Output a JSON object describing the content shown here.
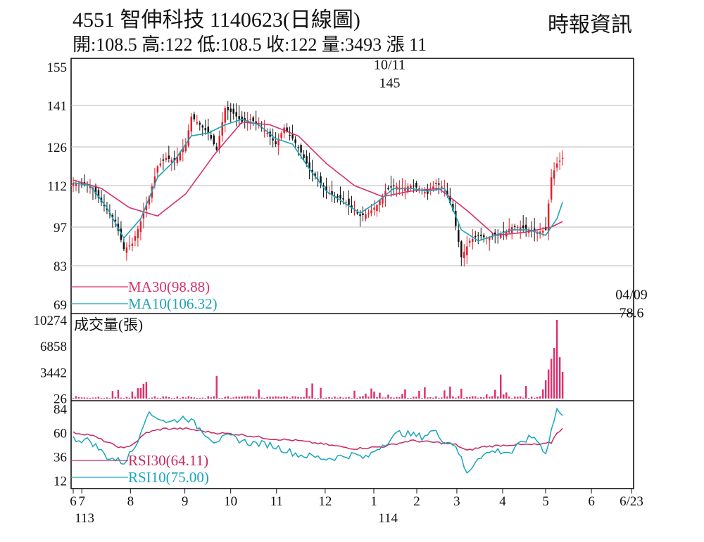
{
  "header": {
    "title": "4551  智伸科技 1140623(日線圖)",
    "summary": "開:108.5 高:122 低:108.5 收:122 量:3493 漲 11",
    "source": "時報資訊"
  },
  "colors": {
    "up": "#e0202a",
    "down": "#111111",
    "ma30": "#d8306a",
    "ma10": "#1ba3b8",
    "volume": "#e0306e",
    "rsi30": "#c8285e",
    "rsi10": "#19a6bd"
  },
  "chart_data": {
    "type": "line",
    "price": {
      "yticks": [
        155,
        141,
        126,
        112,
        97,
        83,
        69
      ],
      "ylim": [
        69,
        155
      ],
      "annotations": [
        {
          "label": "10/11",
          "value": "145",
          "x": 112.5,
          "y": 145
        },
        {
          "label": "04/09",
          "value": "78.6",
          "x": 198.5,
          "y": 78.6
        }
      ],
      "legend": [
        {
          "name": "MA30(98.88)",
          "key": "ma30"
        },
        {
          "name": "MA10(106.32)",
          "key": "ma10"
        }
      ],
      "close_anchors": [
        [
          0,
          113
        ],
        [
          6,
          112
        ],
        [
          10,
          106
        ],
        [
          15,
          99
        ],
        [
          18,
          89
        ],
        [
          21,
          91
        ],
        [
          24,
          99
        ],
        [
          27,
          108
        ],
        [
          30,
          119
        ],
        [
          33,
          122
        ],
        [
          36,
          121
        ],
        [
          40,
          127
        ],
        [
          42,
          137
        ],
        [
          45,
          134
        ],
        [
          48,
          131
        ],
        [
          51,
          125
        ],
        [
          54,
          140
        ],
        [
          57,
          138
        ],
        [
          60,
          135
        ],
        [
          63,
          136
        ],
        [
          66,
          134
        ],
        [
          69,
          131
        ],
        [
          72,
          127
        ],
        [
          75,
          133
        ],
        [
          78,
          129
        ],
        [
          81,
          124
        ],
        [
          84,
          118
        ],
        [
          87,
          114
        ],
        [
          90,
          110
        ],
        [
          93,
          108
        ],
        [
          96,
          107
        ],
        [
          99,
          104
        ],
        [
          102,
          101
        ],
        [
          105,
          102
        ],
        [
          108,
          105
        ],
        [
          111,
          110
        ],
        [
          114,
          112
        ],
        [
          117,
          111
        ],
        [
          120,
          112
        ],
        [
          123,
          111
        ],
        [
          126,
          109
        ],
        [
          129,
          113
        ],
        [
          132,
          111
        ],
        [
          135,
          103
        ],
        [
          138,
          86
        ],
        [
          141,
          92
        ],
        [
          144,
          94
        ],
        [
          147,
          93
        ],
        [
          150,
          94
        ],
        [
          153,
          95
        ],
        [
          156,
          97
        ],
        [
          159,
          97
        ],
        [
          162,
          96
        ],
        [
          165,
          95
        ],
        [
          168,
          96
        ],
        [
          170,
          115
        ],
        [
          172,
          120
        ],
        [
          174,
          122
        ]
      ],
      "ma30_anchors": [
        [
          0,
          114
        ],
        [
          10,
          111
        ],
        [
          20,
          104
        ],
        [
          30,
          101
        ],
        [
          40,
          109
        ],
        [
          50,
          123
        ],
        [
          60,
          135
        ],
        [
          70,
          134
        ],
        [
          80,
          130
        ],
        [
          90,
          120
        ],
        [
          100,
          112
        ],
        [
          110,
          108
        ],
        [
          120,
          110
        ],
        [
          130,
          111
        ],
        [
          140,
          103
        ],
        [
          150,
          94
        ],
        [
          160,
          95
        ],
        [
          170,
          97
        ],
        [
          174,
          99
        ]
      ],
      "ma10_anchors": [
        [
          0,
          113
        ],
        [
          6,
          112
        ],
        [
          12,
          104
        ],
        [
          18,
          93
        ],
        [
          24,
          100
        ],
        [
          30,
          115
        ],
        [
          36,
          121
        ],
        [
          42,
          130
        ],
        [
          48,
          131
        ],
        [
          54,
          134
        ],
        [
          60,
          136
        ],
        [
          66,
          134
        ],
        [
          72,
          129
        ],
        [
          78,
          127
        ],
        [
          84,
          118
        ],
        [
          90,
          110
        ],
        [
          96,
          106
        ],
        [
          102,
          102
        ],
        [
          108,
          106
        ],
        [
          114,
          111
        ],
        [
          120,
          111
        ],
        [
          126,
          110
        ],
        [
          132,
          111
        ],
        [
          138,
          96
        ],
        [
          144,
          92
        ],
        [
          150,
          94
        ],
        [
          156,
          96
        ],
        [
          162,
          96
        ],
        [
          168,
          94
        ],
        [
          172,
          100
        ],
        [
          174,
          106
        ]
      ]
    },
    "volume": {
      "title": "成交量(張)",
      "yticks": [
        10274,
        6858,
        3442,
        26
      ],
      "ylim": [
        0,
        10274
      ]
    },
    "rsi": {
      "yticks": [
        84,
        60,
        36,
        12
      ],
      "ylim": [
        6,
        90
      ],
      "legend": [
        {
          "name": "RSI30(64.11)",
          "key": "rsi30"
        },
        {
          "name": "RSI10(75.00)",
          "key": "rsi10"
        }
      ],
      "rsi30_anchors": [
        [
          0,
          60
        ],
        [
          6,
          58
        ],
        [
          14,
          48
        ],
        [
          18,
          44
        ],
        [
          22,
          50
        ],
        [
          26,
          60
        ],
        [
          32,
          64
        ],
        [
          40,
          64
        ],
        [
          50,
          60
        ],
        [
          60,
          58
        ],
        [
          70,
          54
        ],
        [
          80,
          52
        ],
        [
          90,
          48
        ],
        [
          100,
          44
        ],
        [
          110,
          46
        ],
        [
          120,
          52
        ],
        [
          130,
          50
        ],
        [
          136,
          48
        ],
        [
          140,
          42
        ],
        [
          146,
          46
        ],
        [
          156,
          48
        ],
        [
          166,
          48
        ],
        [
          170,
          50
        ],
        [
          172,
          60
        ],
        [
          174,
          64
        ]
      ],
      "rsi10_anchors": [
        [
          0,
          54
        ],
        [
          6,
          52
        ],
        [
          12,
          36
        ],
        [
          18,
          30
        ],
        [
          22,
          46
        ],
        [
          26,
          78
        ],
        [
          30,
          76
        ],
        [
          34,
          70
        ],
        [
          40,
          76
        ],
        [
          46,
          62
        ],
        [
          50,
          52
        ],
        [
          56,
          56
        ],
        [
          62,
          50
        ],
        [
          70,
          48
        ],
        [
          80,
          38
        ],
        [
          90,
          34
        ],
        [
          100,
          38
        ],
        [
          104,
          34
        ],
        [
          108,
          44
        ],
        [
          112,
          52
        ],
        [
          116,
          60
        ],
        [
          120,
          58
        ],
        [
          124,
          56
        ],
        [
          128,
          62
        ],
        [
          132,
          52
        ],
        [
          136,
          48
        ],
        [
          140,
          18
        ],
        [
          144,
          36
        ],
        [
          150,
          42
        ],
        [
          156,
          40
        ],
        [
          160,
          52
        ],
        [
          164,
          56
        ],
        [
          168,
          40
        ],
        [
          172,
          84
        ],
        [
          174,
          75
        ]
      ]
    },
    "x_axis": {
      "n": 175,
      "ticks": [
        {
          "label": "6",
          "x": 0
        },
        {
          "label": "7",
          "x": 3
        },
        {
          "label": "8",
          "x": 20
        },
        {
          "label": "9",
          "x": 39
        },
        {
          "label": "10",
          "x": 55
        },
        {
          "label": "11",
          "x": 71
        },
        {
          "label": "12",
          "x": 88
        },
        {
          "label": "1",
          "x": 105
        },
        {
          "label": "2",
          "x": 120
        },
        {
          "label": "3",
          "x": 134
        },
        {
          "label": "4",
          "x": 150
        },
        {
          "label": "5",
          "x": 165
        },
        {
          "label": "6",
          "x": 181
        },
        {
          "label": "6/23",
          "x": 195
        }
      ],
      "year_labels": [
        {
          "label": "113",
          "x": 1
        },
        {
          "label": "114",
          "x": 107
        }
      ]
    }
  }
}
